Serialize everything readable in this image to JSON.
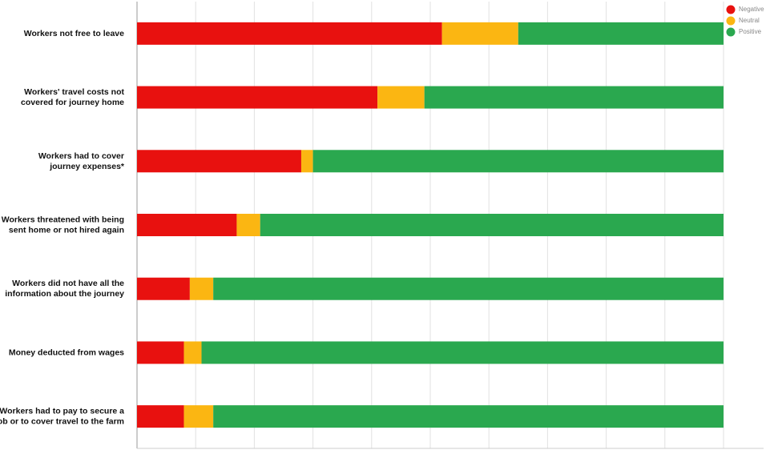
{
  "chart_data": {
    "type": "stacked-barh",
    "categories": [
      [
        "Workers not free to leave"
      ],
      [
        "Workers' travel costs not",
        "covered for journey home"
      ],
      [
        "Workers had to cover",
        "journey expenses*"
      ],
      [
        "Workers threatened with being",
        "sent home or not hired again"
      ],
      [
        "Workers did not have all the",
        "information about the journey"
      ],
      [
        "Money deducted from wages"
      ],
      [
        "Workers had to pay to secure a",
        "job or to cover travel to the farm"
      ]
    ],
    "series": [
      {
        "name": "Negative",
        "color": "#e8110f",
        "values": [
          52,
          41,
          28,
          17,
          9,
          8,
          8
        ]
      },
      {
        "name": "Neutral",
        "color": "#fbb612",
        "values": [
          13,
          8,
          2,
          4,
          4,
          3,
          5
        ]
      },
      {
        "name": "Positive",
        "color": "#2aa84f",
        "values": [
          35,
          51,
          70,
          79,
          87,
          89,
          87
        ]
      }
    ],
    "xlim": [
      0,
      100
    ],
    "xticks": [
      0,
      10,
      20,
      30,
      40,
      50,
      60,
      70,
      80,
      90,
      100
    ],
    "grid": true,
    "legend": "top-right"
  }
}
